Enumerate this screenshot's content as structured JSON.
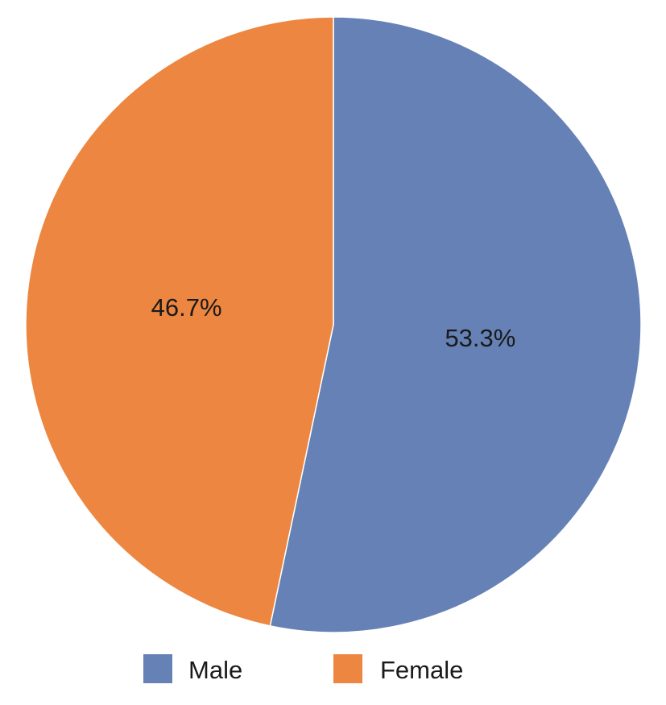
{
  "chart_data": {
    "type": "pie",
    "title": "",
    "start_angle_deg": 0,
    "direction": "clockwise",
    "legend_position": "bottom",
    "slices": [
      {
        "label": "Male",
        "value": 53.3,
        "display": "53.3%",
        "color": "#6581b6"
      },
      {
        "label": "Female",
        "value": 46.7,
        "display": "46.7%",
        "color": "#ed8640"
      }
    ]
  }
}
